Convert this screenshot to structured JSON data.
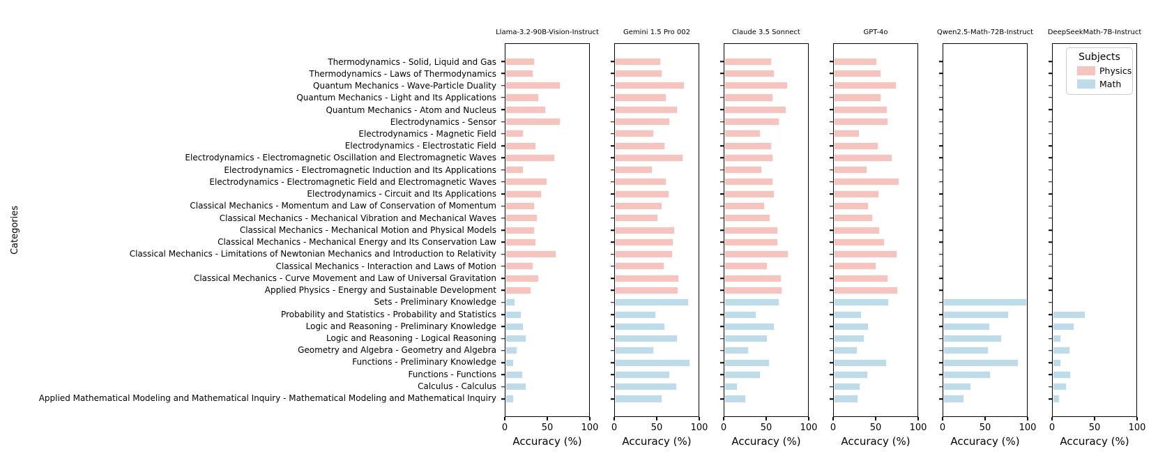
{
  "figure": {
    "y_axis_label": "Categories",
    "x_axis_label": "Accuracy (%)"
  },
  "legend": {
    "title": "Subjects",
    "entries": [
      {
        "label": "Physics",
        "color": "#f5c4be"
      },
      {
        "label": "Math",
        "color": "#bddbe8"
      }
    ]
  },
  "chart_data": {
    "type": "bar",
    "orientation": "horizontal",
    "xlim": [
      0,
      100
    ],
    "x_ticks": [
      0,
      50,
      100
    ],
    "grid": false,
    "legend_position": "top-right-last-panel",
    "categories": [
      {
        "label": "Thermodynamics - Solid, Liquid and Gas",
        "subject": "Physics"
      },
      {
        "label": "Thermodynamics - Laws of Thermodynamics",
        "subject": "Physics"
      },
      {
        "label": "Quantum Mechanics - Wave-Particle Duality",
        "subject": "Physics"
      },
      {
        "label": "Quantum Mechanics - Light and Its Applications",
        "subject": "Physics"
      },
      {
        "label": "Quantum Mechanics - Atom and Nucleus",
        "subject": "Physics"
      },
      {
        "label": "Electrodynamics - Sensor",
        "subject": "Physics"
      },
      {
        "label": "Electrodynamics - Magnetic Field",
        "subject": "Physics"
      },
      {
        "label": "Electrodynamics - Electrostatic Field",
        "subject": "Physics"
      },
      {
        "label": "Electrodynamics - Electromagnetic Oscillation and Electromagnetic Waves",
        "subject": "Physics"
      },
      {
        "label": "Electrodynamics - Electromagnetic Induction and Its Applications",
        "subject": "Physics"
      },
      {
        "label": "Electrodynamics - Electromagnetic Field and Electromagnetic Waves",
        "subject": "Physics"
      },
      {
        "label": "Electrodynamics - Circuit and Its Applications",
        "subject": "Physics"
      },
      {
        "label": "Classical Mechanics - Momentum and Law of Conservation of Momentum",
        "subject": "Physics"
      },
      {
        "label": "Classical Mechanics - Mechanical Vibration and Mechanical Waves",
        "subject": "Physics"
      },
      {
        "label": "Classical Mechanics - Mechanical Motion and Physical Models",
        "subject": "Physics"
      },
      {
        "label": "Classical Mechanics - Mechanical Energy and Its Conservation Law",
        "subject": "Physics"
      },
      {
        "label": "Classical Mechanics - Limitations of Newtonian Mechanics and Introduction to Relativity",
        "subject": "Physics"
      },
      {
        "label": "Classical Mechanics - Interaction and Laws of Motion",
        "subject": "Physics"
      },
      {
        "label": "Classical Mechanics - Curve Movement and Law of Universal Gravitation",
        "subject": "Physics"
      },
      {
        "label": "Applied Physics - Energy and Sustainable Development",
        "subject": "Physics"
      },
      {
        "label": "Sets - Preliminary Knowledge",
        "subject": "Math"
      },
      {
        "label": "Probability and Statistics - Probability and Statistics",
        "subject": "Math"
      },
      {
        "label": "Logic and Reasoning - Preliminary Knowledge",
        "subject": "Math"
      },
      {
        "label": "Logic and Reasoning - Logical Reasoning",
        "subject": "Math"
      },
      {
        "label": "Geometry and Algebra - Geometry and Algebra",
        "subject": "Math"
      },
      {
        "label": "Functions - Preliminary Knowledge",
        "subject": "Math"
      },
      {
        "label": "Functions - Functions",
        "subject": "Math"
      },
      {
        "label": "Calculus - Calculus",
        "subject": "Math"
      },
      {
        "label": "Applied Mathematical Modeling and Mathematical Inquiry - Mathematical Modeling and Mathematical Inquiry",
        "subject": "Math"
      }
    ],
    "series": [
      {
        "name": "Llama-3.2-90B-Vision-Instruct",
        "values": [
          35,
          33,
          66,
          40,
          48,
          66,
          22,
          37,
          59,
          22,
          50,
          43,
          35,
          38,
          35,
          37,
          61,
          33,
          40,
          31,
          12,
          19,
          22,
          25,
          14,
          10,
          21,
          25,
          10
        ]
      },
      {
        "name": "Gemini 1.5 Pro 002",
        "values": [
          55,
          57,
          83,
          62,
          75,
          66,
          47,
          60,
          82,
          45,
          62,
          65,
          57,
          52,
          72,
          70,
          69,
          59,
          77,
          76,
          88,
          49,
          60,
          75,
          47,
          90,
          66,
          74,
          57
        ]
      },
      {
        "name": "Claude 3.5 Sonnect",
        "values": [
          57,
          60,
          76,
          58,
          74,
          66,
          43,
          57,
          58,
          45,
          58,
          60,
          48,
          55,
          64,
          64,
          77,
          52,
          68,
          69,
          66,
          38,
          60,
          52,
          29,
          54,
          43,
          16,
          26
        ]
      },
      {
        "name": "GPT-4o",
        "values": [
          52,
          57,
          75,
          57,
          64,
          65,
          31,
          53,
          70,
          40,
          78,
          54,
          42,
          47,
          55,
          61,
          76,
          51,
          65,
          77,
          66,
          33,
          42,
          37,
          28,
          63,
          41,
          32,
          29
        ]
      },
      {
        "name": "Qwen2.5-Math-72B-Instruct",
        "values": [
          null,
          null,
          null,
          null,
          null,
          null,
          null,
          null,
          null,
          null,
          null,
          null,
          null,
          null,
          null,
          null,
          null,
          null,
          null,
          null,
          100,
          78,
          56,
          70,
          54,
          90,
          57,
          33,
          25
        ]
      },
      {
        "name": "DeepSeekMath-7B-Instruct",
        "values": [
          null,
          null,
          null,
          null,
          null,
          null,
          null,
          null,
          null,
          null,
          null,
          null,
          null,
          null,
          null,
          null,
          null,
          null,
          null,
          null,
          null,
          39,
          26,
          10,
          21,
          10,
          22,
          17,
          8
        ]
      }
    ]
  }
}
